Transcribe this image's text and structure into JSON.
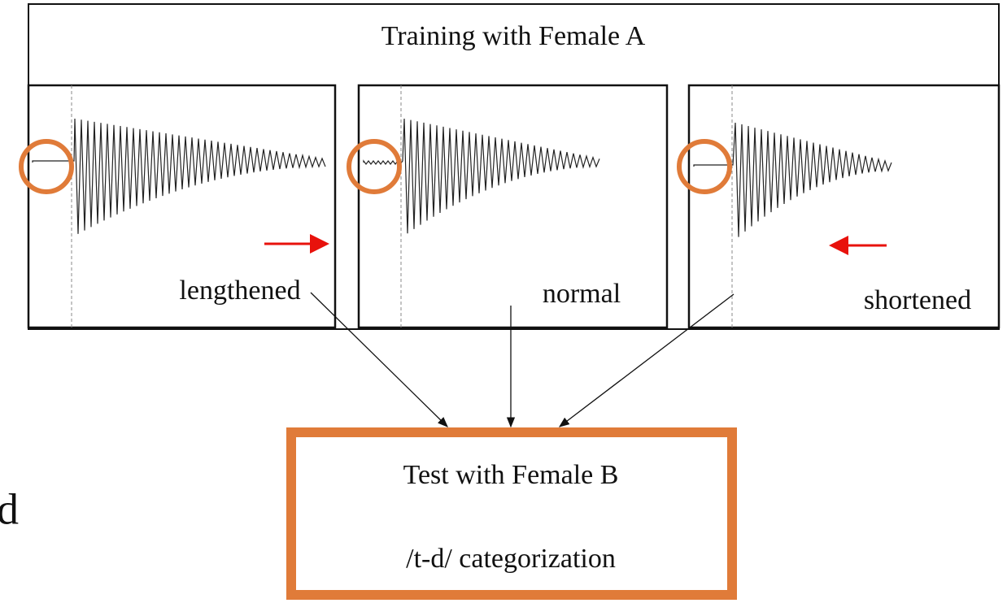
{
  "header": {
    "title": "Training with Female A"
  },
  "panels": [
    {
      "label": "lengthened"
    },
    {
      "label": "normal"
    },
    {
      "label": "shortened"
    }
  ],
  "test": {
    "title": "Test with Female B",
    "task": "/t-d/ categorization"
  },
  "fragment": "d"
}
